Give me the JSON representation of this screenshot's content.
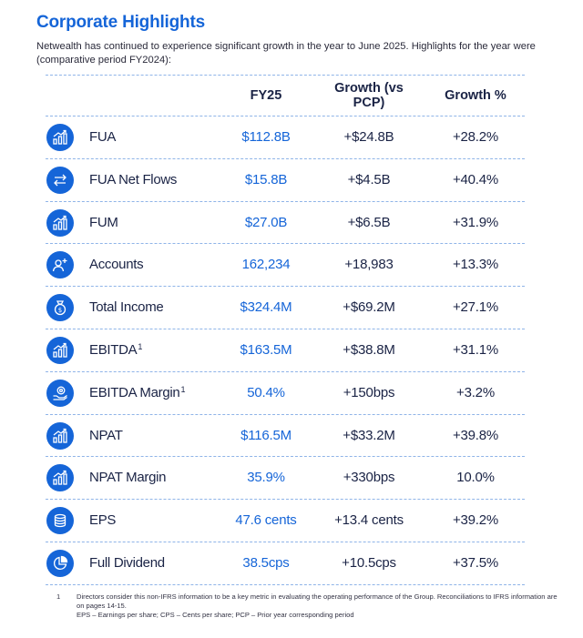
{
  "title": "Corporate Highlights",
  "intro": "Netwealth has continued to experience significant growth in the year to June 2025.  Highlights for the year were (comparative period FY2024):",
  "headers": {
    "fy25": "FY25",
    "growth_value": "Growth (vs PCP)",
    "growth_pct": "Growth %"
  },
  "rows": [
    {
      "label": "FUA",
      "sup": "",
      "fy25": "$112.8B",
      "growth_value": "+$24.8B",
      "growth_pct": "+28.2%",
      "icon": "bar-chart-growth-icon"
    },
    {
      "label": "FUA Net Flows",
      "sup": "",
      "fy25": "$15.8B",
      "growth_value": "+$4.5B",
      "growth_pct": "+40.4%",
      "icon": "swap-arrows-icon"
    },
    {
      "label": "FUM",
      "sup": "",
      "fy25": "$27.0B",
      "growth_value": "+$6.5B",
      "growth_pct": "+31.9%",
      "icon": "bar-chart-growth-icon"
    },
    {
      "label": "Accounts",
      "sup": "",
      "fy25": "162,234",
      "growth_value": "+18,983",
      "growth_pct": "+13.3%",
      "icon": "add-user-icon"
    },
    {
      "label": "Total Income",
      "sup": "",
      "fy25": "$324.4M",
      "growth_value": "+$69.2M",
      "growth_pct": "+27.1%",
      "icon": "money-bag-icon"
    },
    {
      "label": "EBITDA",
      "sup": "1",
      "fy25": "$163.5M",
      "growth_value": "+$38.8M",
      "growth_pct": "+31.1%",
      "icon": "bar-chart-growth-icon"
    },
    {
      "label": "EBITDA Margin",
      "sup": "1",
      "fy25": "50.4%",
      "growth_value": "+150bps",
      "growth_pct": "+3.2%",
      "icon": "hand-gear-icon"
    },
    {
      "label": "NPAT",
      "sup": "",
      "fy25": "$116.5M",
      "growth_value": "+$33.2M",
      "growth_pct": "+39.8%",
      "icon": "bar-chart-growth-icon"
    },
    {
      "label": "NPAT Margin",
      "sup": "",
      "fy25": "35.9%",
      "growth_value": "+330bps",
      "growth_pct": "10.0%",
      "icon": "bar-chart-growth-icon"
    },
    {
      "label": "EPS",
      "sup": "",
      "fy25": "47.6 cents",
      "growth_value": "+13.4 cents",
      "growth_pct": "+39.2%",
      "icon": "coin-stack-icon"
    },
    {
      "label": "Full Dividend",
      "sup": "",
      "fy25": "38.5cps",
      "growth_value": "+10.5cps",
      "growth_pct": "+37.5%",
      "icon": "pie-chart-icon"
    }
  ],
  "footnote": {
    "number": "1",
    "line1": "Directors consider this non-IFRS information to be a key metric in evaluating the operating performance of the Group.  Reconciliations to IFRS information are on pages 14-15.",
    "line2": "EPS – Earnings per share; CPS – Cents per share; PCP – Prior year corresponding period"
  },
  "colors": {
    "accent": "#1565d8",
    "text": "#1a2345",
    "divider": "#8fb4e8"
  }
}
